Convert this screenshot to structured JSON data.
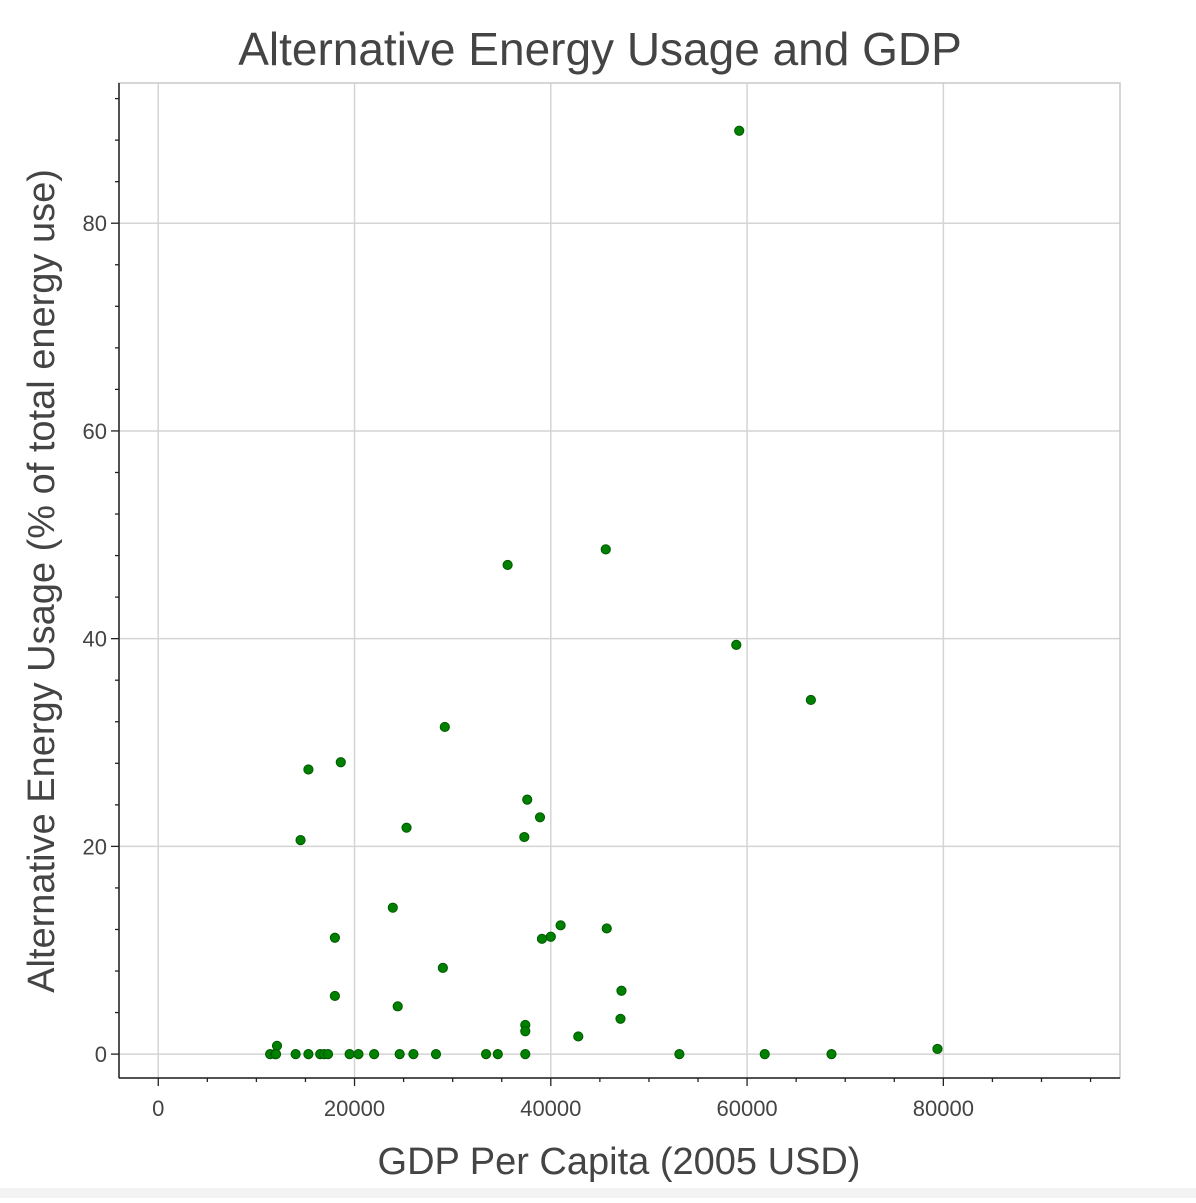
{
  "chart_data": {
    "type": "scatter",
    "title": "Alternative Energy Usage and GDP",
    "xlabel": "GDP Per Capita (2005 USD)",
    "ylabel": "Alternative Energy Usage (% of total energy use)",
    "xlim": [
      -4000,
      98000
    ],
    "ylim": [
      -2.3,
      93.5
    ],
    "xticks": [
      0,
      20000,
      40000,
      60000,
      80000
    ],
    "yticks": [
      0,
      20,
      40,
      60,
      80
    ],
    "grid": true,
    "marker_color": "#008000",
    "marker_edge_color": "#005a00",
    "x": [
      11400,
      11900,
      12100,
      12000,
      14000,
      15300,
      16500,
      16900,
      17300,
      19500,
      20400,
      22000,
      24600,
      26000,
      28300,
      33400,
      34600,
      37400,
      14500,
      15300,
      18600,
      18000,
      18000,
      23900,
      24400,
      25300,
      29200,
      29000,
      35600,
      37600,
      37300,
      38900,
      39100,
      40000,
      41000,
      45600,
      45700,
      37400,
      37400,
      42800,
      47200,
      47100,
      53100,
      58900,
      59200,
      61800,
      66500,
      68600,
      79400
    ],
    "y": [
      0,
      0,
      0.8,
      0,
      0,
      0,
      0,
      0,
      0,
      0,
      0,
      0,
      0,
      0,
      0,
      0,
      0,
      0,
      20.6,
      27.4,
      28.1,
      11.2,
      5.6,
      14.1,
      4.6,
      21.8,
      31.5,
      8.3,
      47.1,
      24.5,
      20.9,
      22.8,
      11.1,
      11.3,
      12.4,
      48.6,
      12.1,
      2.8,
      2.2,
      1.7,
      6.1,
      3.4,
      0,
      39.4,
      88.9,
      0,
      34.1,
      0,
      0.5
    ]
  }
}
